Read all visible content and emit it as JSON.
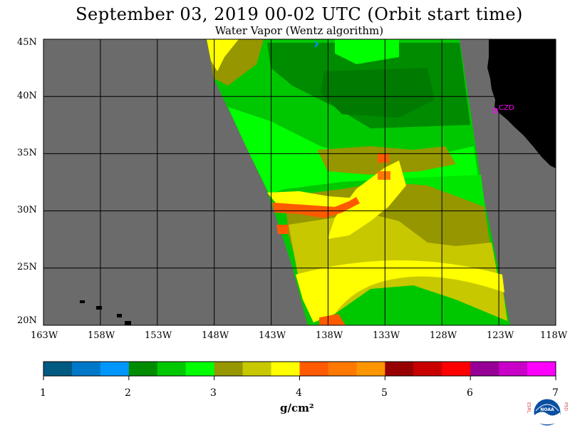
{
  "header": {
    "title": "September 03, 2019  00-02 UTC  (Orbit start time)",
    "subtitle": "Water Vapor (Wentz algorithm)"
  },
  "map": {
    "lat_labels": [
      "45N",
      "40N",
      "35N",
      "30N",
      "25N",
      "20N"
    ],
    "lon_labels": [
      "163W",
      "158W",
      "153W",
      "148W",
      "143W",
      "138W",
      "133W",
      "128W",
      "123W",
      "118W"
    ],
    "lat_range": [
      20,
      45
    ],
    "lon_range": [
      -163,
      -118
    ],
    "station_label": "CZD",
    "colors": {
      "no_data": "#6b6b6b",
      "land": "#000000",
      "grid": "#000000",
      "station": "#ff00ff"
    }
  },
  "colorbar": {
    "tick_labels": [
      "1",
      "2",
      "3",
      "4",
      "5",
      "6",
      "7"
    ],
    "units": "g/cm²",
    "colors": [
      "#005a82",
      "#0078c8",
      "#0096ff",
      "#008c00",
      "#00c800",
      "#00ff00",
      "#969600",
      "#c8c800",
      "#ffff00",
      "#ff5a00",
      "#ff7800",
      "#ff9600",
      "#960000",
      "#c80000",
      "#ff0000",
      "#960096",
      "#c800c8",
      "#ff00ff"
    ]
  },
  "logo": {
    "left_letters": "ESRL",
    "right_letters": "PSD",
    "center_text": "NOAA"
  }
}
